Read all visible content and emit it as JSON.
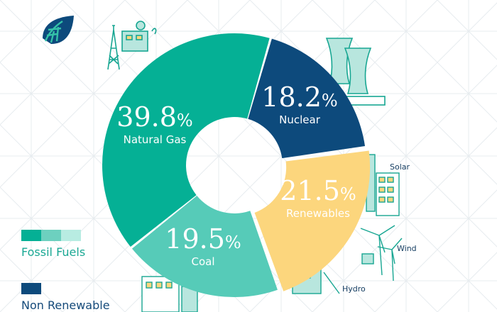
{
  "chart_data": {
    "type": "pie",
    "donut": true,
    "segments": [
      {
        "label": "Natural Gas",
        "value": 39.8,
        "display": "39.8",
        "unit": "%",
        "group": "Fossil Fuels",
        "color": "#05b095"
      },
      {
        "label": "Nuclear",
        "value": 18.2,
        "display": "18.2",
        "unit": "%",
        "group": "Non Renewable",
        "color": "#0d4a7c"
      },
      {
        "label": "Renewables",
        "value": 21.5,
        "display": "21.5",
        "unit": "%",
        "group": "Renewables",
        "color": "#fcd67d"
      },
      {
        "label": "Coal",
        "value": 19.5,
        "display": "19.5",
        "unit": "%",
        "group": "Fossil Fuels",
        "color": "#56cbb8"
      }
    ],
    "renewable_callouts": [
      "Solar",
      "Wind",
      "Hydro"
    ],
    "legend": [
      {
        "label": "Fossil Fuels",
        "colors": [
          "#05b095",
          "#6dd0bf",
          "#b8ece2"
        ]
      },
      {
        "label": "Non Renewable",
        "colors": [
          "#0d4a7c"
        ]
      }
    ]
  },
  "colors": {
    "grid": "#dde3e8",
    "illustration": "#b8e6de",
    "illustration_line": "#17a692",
    "navy": "#0d4a7c"
  },
  "icons": {
    "logo": "leaf-logo-icon",
    "illustrations": [
      "gas-rig-icon",
      "nuclear-plant-icon",
      "solar-panel-icon",
      "wind-turbine-icon",
      "hydro-dam-icon",
      "coal-plant-icon"
    ]
  }
}
